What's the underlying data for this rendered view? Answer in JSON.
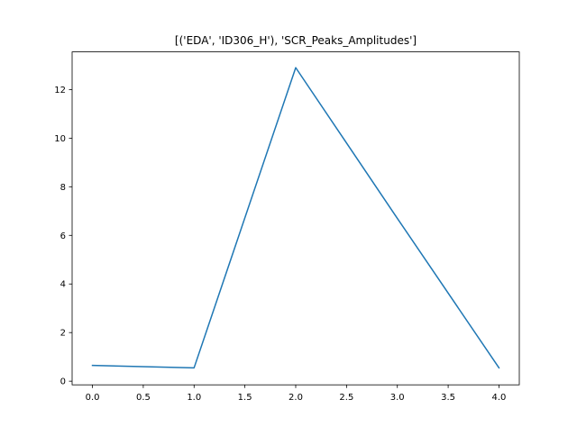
{
  "chart_data": {
    "type": "line",
    "title": "[('EDA', 'ID306_H'), 'SCR_Peaks_Amplitudes']",
    "xlabel": "",
    "ylabel": "",
    "xlim": [
      -0.2,
      4.2
    ],
    "ylim": [
      -0.15,
      13.55
    ],
    "xticks": [
      "0.0",
      "0.5",
      "1.0",
      "1.5",
      "2.0",
      "2.5",
      "3.0",
      "3.5",
      "4.0"
    ],
    "yticks": [
      "0",
      "2",
      "4",
      "6",
      "8",
      "10",
      "12"
    ],
    "grid": false,
    "series": [
      {
        "color": "#1f77b4",
        "x": [
          0,
          1,
          2,
          3,
          4
        ],
        "y": [
          0.65,
          0.55,
          12.9,
          6.7,
          0.55
        ]
      }
    ]
  }
}
